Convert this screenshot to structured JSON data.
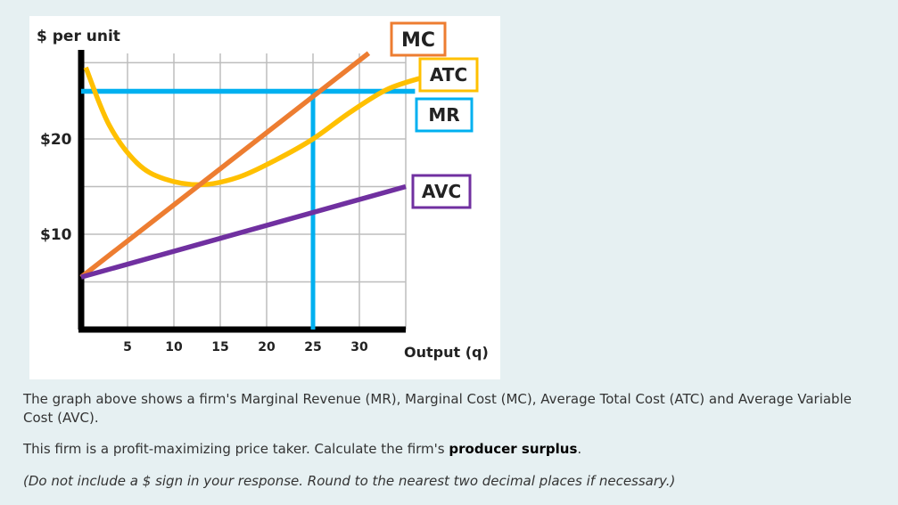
{
  "chart_data": {
    "type": "line",
    "ylabel": "$ per unit",
    "xlabel": "Output (q)",
    "x_ticks": [
      5,
      10,
      15,
      20,
      25,
      30
    ],
    "y_ticks": [
      {
        "value": 10,
        "label": "$10"
      },
      {
        "value": 20,
        "label": "$20"
      }
    ],
    "xlim": [
      0,
      35
    ],
    "ylim": [
      0,
      30
    ],
    "grid": true,
    "series": [
      {
        "name": "MC",
        "color": "#ed7d31",
        "points": [
          [
            0,
            5.5
          ],
          [
            31,
            29
          ]
        ]
      },
      {
        "name": "ATC",
        "color": "#ffc000",
        "points": [
          [
            0.5,
            27.5
          ],
          [
            3,
            21.5
          ],
          [
            6,
            17.5
          ],
          [
            9,
            15.8
          ],
          [
            13,
            15.2
          ],
          [
            17,
            16
          ],
          [
            21,
            17.8
          ],
          [
            25,
            20
          ],
          [
            29,
            22.8
          ],
          [
            33,
            25.2
          ],
          [
            37,
            26.5
          ]
        ]
      },
      {
        "name": "MR",
        "color": "#00b0f0",
        "points": [
          [
            0,
            25
          ],
          [
            36,
            25
          ]
        ]
      },
      {
        "name": "AVC",
        "color": "#7030a0",
        "points": [
          [
            0,
            5.5
          ],
          [
            35,
            15
          ]
        ]
      }
    ],
    "guides": [
      {
        "color": "#00b0f0",
        "points": [
          [
            25,
            25
          ],
          [
            25,
            0
          ]
        ]
      }
    ],
    "legend": [
      {
        "label": "MC",
        "color": "#ed7d31"
      },
      {
        "label": "ATC",
        "color": "#ffc000"
      },
      {
        "label": "MR",
        "color": "#00b0f0"
      },
      {
        "label": "AVC",
        "color": "#7030a0"
      }
    ]
  },
  "question": {
    "line1": "The graph above shows a firm's Marginal Revenue (MR), Marginal Cost (MC), Average Total Cost (ATC) and Average Variable Cost (AVC).",
    "line2_before": "This firm is a profit-maximizing price taker. Calculate the firm's ",
    "line2_bold": "producer surplus",
    "line2_after": ".",
    "line3": "(Do not include a $ sign in your response. Round to the nearest two decimal places if necessary.)"
  }
}
